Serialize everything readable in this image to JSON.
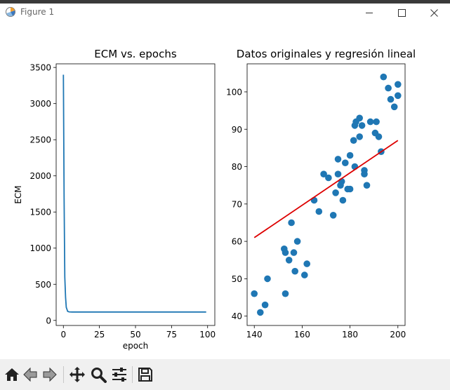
{
  "window": {
    "title": "Figure 1"
  },
  "toolbar": {
    "buttons": [
      {
        "name": "home-icon"
      },
      {
        "name": "back-icon"
      },
      {
        "name": "forward-icon"
      },
      {
        "name": "pan-icon"
      },
      {
        "name": "zoom-icon"
      },
      {
        "name": "configure-subplots-icon"
      },
      {
        "name": "save-icon"
      }
    ]
  },
  "chart_data": [
    {
      "type": "line",
      "title": "ECM vs. epochs",
      "xlabel": "epoch",
      "ylabel": "ECM",
      "xlim": [
        -5,
        105
      ],
      "ylim": [
        -70,
        3550
      ],
      "xticks": [
        0,
        25,
        50,
        75,
        100
      ],
      "yticks": [
        0,
        500,
        1000,
        1500,
        2000,
        2500,
        3000,
        3500
      ],
      "grid": false,
      "color": "#1f77b4",
      "series": [
        {
          "x": [
            0,
            0.5,
            1,
            1.5,
            2,
            3,
            4,
            6,
            10,
            20,
            40,
            60,
            80,
            99
          ],
          "y": [
            3400,
            1700,
            600,
            320,
            180,
            125,
            118,
            116,
            116,
            116,
            116,
            116,
            116,
            116
          ]
        }
      ]
    },
    {
      "type": "scatter",
      "title": "Datos originales y regresión lineal",
      "xlabel": "",
      "ylabel": "",
      "xlim": [
        137,
        203
      ],
      "ylim": [
        37.5,
        107.5
      ],
      "xticks": [
        140,
        160,
        180,
        200
      ],
      "yticks": [
        40,
        50,
        60,
        70,
        80,
        90,
        100
      ],
      "grid": false,
      "scatter_color": "#1f77b4",
      "line_color": "#dd0000",
      "points": [
        [
          140,
          46
        ],
        [
          142.5,
          41
        ],
        [
          144.5,
          43
        ],
        [
          145.5,
          50
        ],
        [
          152.5,
          58
        ],
        [
          153,
          46
        ],
        [
          153,
          57
        ],
        [
          154.5,
          55
        ],
        [
          155.5,
          65
        ],
        [
          156.5,
          57
        ],
        [
          157,
          52
        ],
        [
          158,
          60
        ],
        [
          161,
          51
        ],
        [
          162,
          54
        ],
        [
          165,
          71
        ],
        [
          167,
          68
        ],
        [
          169,
          78
        ],
        [
          171,
          77
        ],
        [
          173,
          67
        ],
        [
          174,
          73
        ],
        [
          175,
          82
        ],
        [
          175,
          78
        ],
        [
          176,
          75
        ],
        [
          176.5,
          76
        ],
        [
          177,
          71
        ],
        [
          178,
          81
        ],
        [
          179,
          74
        ],
        [
          180,
          74
        ],
        [
          180,
          83
        ],
        [
          181.5,
          87
        ],
        [
          182,
          80
        ],
        [
          182,
          91
        ],
        [
          182.5,
          92
        ],
        [
          184,
          93
        ],
        [
          184,
          88
        ],
        [
          185,
          91
        ],
        [
          186,
          79
        ],
        [
          186,
          78
        ],
        [
          187,
          75
        ],
        [
          188.5,
          92
        ],
        [
          190.5,
          89
        ],
        [
          191,
          92
        ],
        [
          192,
          88
        ],
        [
          193,
          84
        ],
        [
          194,
          104
        ],
        [
          196,
          101
        ],
        [
          197,
          98
        ],
        [
          198.5,
          96
        ],
        [
          200,
          102
        ],
        [
          200,
          99
        ]
      ],
      "line": {
        "x": [
          140,
          200
        ],
        "y": [
          61,
          87
        ]
      }
    }
  ]
}
